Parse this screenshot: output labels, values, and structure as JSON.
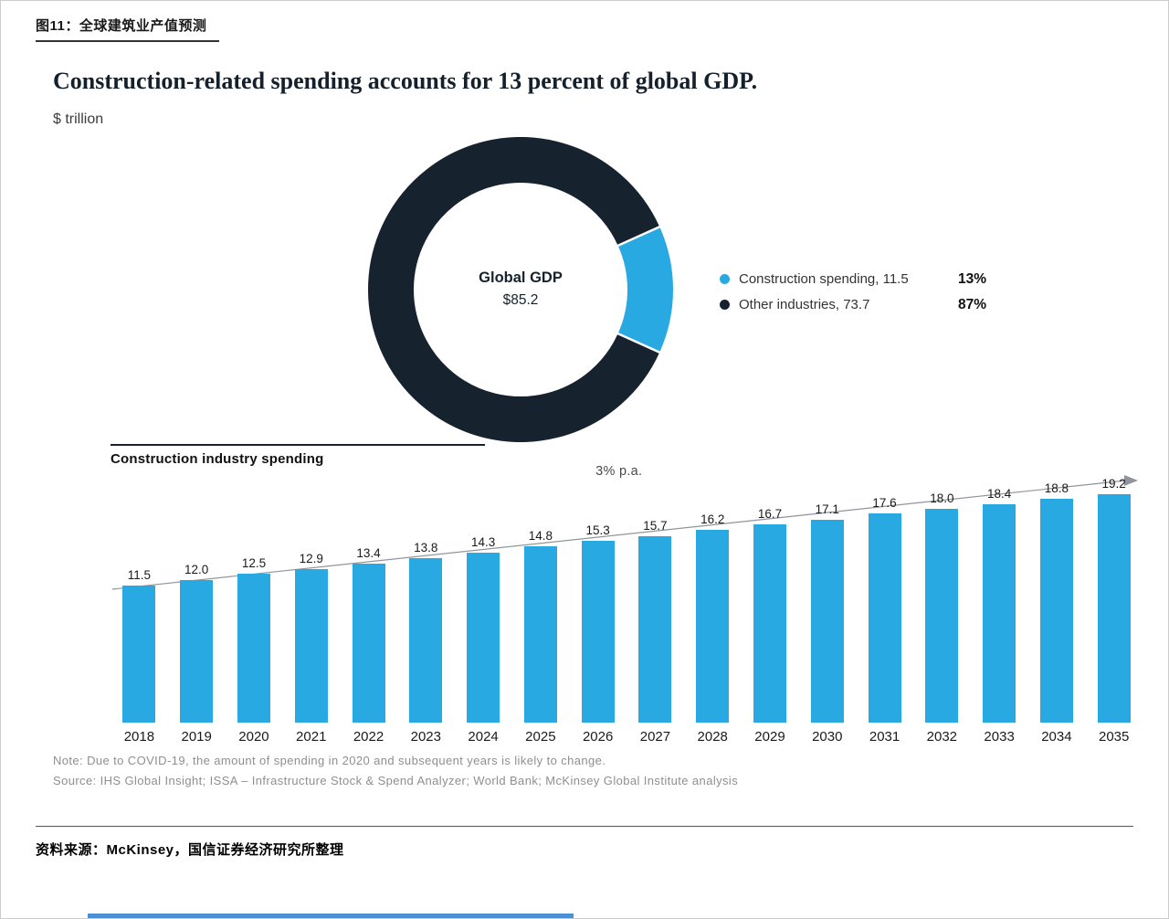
{
  "figure": {
    "label": "图11：全球建筑业产值预测",
    "footer_source": "资料来源：McKinsey，国信证券经济研究所整理"
  },
  "colors": {
    "bar_blue": "#29a9e1",
    "dark_navy": "#16222e",
    "trend_line_gray": "#8f959b",
    "bottom_accent_blue": "#4a90d2"
  },
  "chart_data": [
    {
      "type": "pie",
      "subtype": "donut",
      "title": "Construction-related spending accounts for 13 percent of global GDP.",
      "unit_label": "$ trillion",
      "center_title": "Global GDP",
      "center_value": "$85.2",
      "total": 85.2,
      "slices": [
        {
          "label": "Construction spending, 11.5",
          "value": 11.5,
          "pct_label": "13%",
          "color": "#29a9e1"
        },
        {
          "label": "Other industries, 73.7",
          "value": 73.7,
          "pct_label": "87%",
          "color": "#16222e"
        }
      ],
      "legend_position": "right"
    },
    {
      "type": "bar",
      "title": "Construction industry spending",
      "growth_annotation": "3% p.a.",
      "categories": [
        "2018",
        "2019",
        "2020",
        "2021",
        "2022",
        "2023",
        "2024",
        "2025",
        "2026",
        "2027",
        "2028",
        "2029",
        "2030",
        "2031",
        "2032",
        "2033",
        "2034",
        "2035"
      ],
      "values": [
        11.5,
        12.0,
        12.5,
        12.9,
        13.4,
        13.8,
        14.3,
        14.8,
        15.3,
        15.7,
        16.2,
        16.7,
        17.1,
        17.6,
        18.0,
        18.4,
        18.8,
        19.2
      ],
      "bar_color": "#29a9e1",
      "ylim": [
        0,
        20
      ],
      "grid": false,
      "note": "Note: Due to COVID-19, the amount of spending in 2020 and subsequent years is likely to change.",
      "source": "Source: IHS Global Insight; ISSA – Infrastructure Stock & Spend Analyzer; World Bank; McKinsey Global Institute analysis"
    }
  ]
}
